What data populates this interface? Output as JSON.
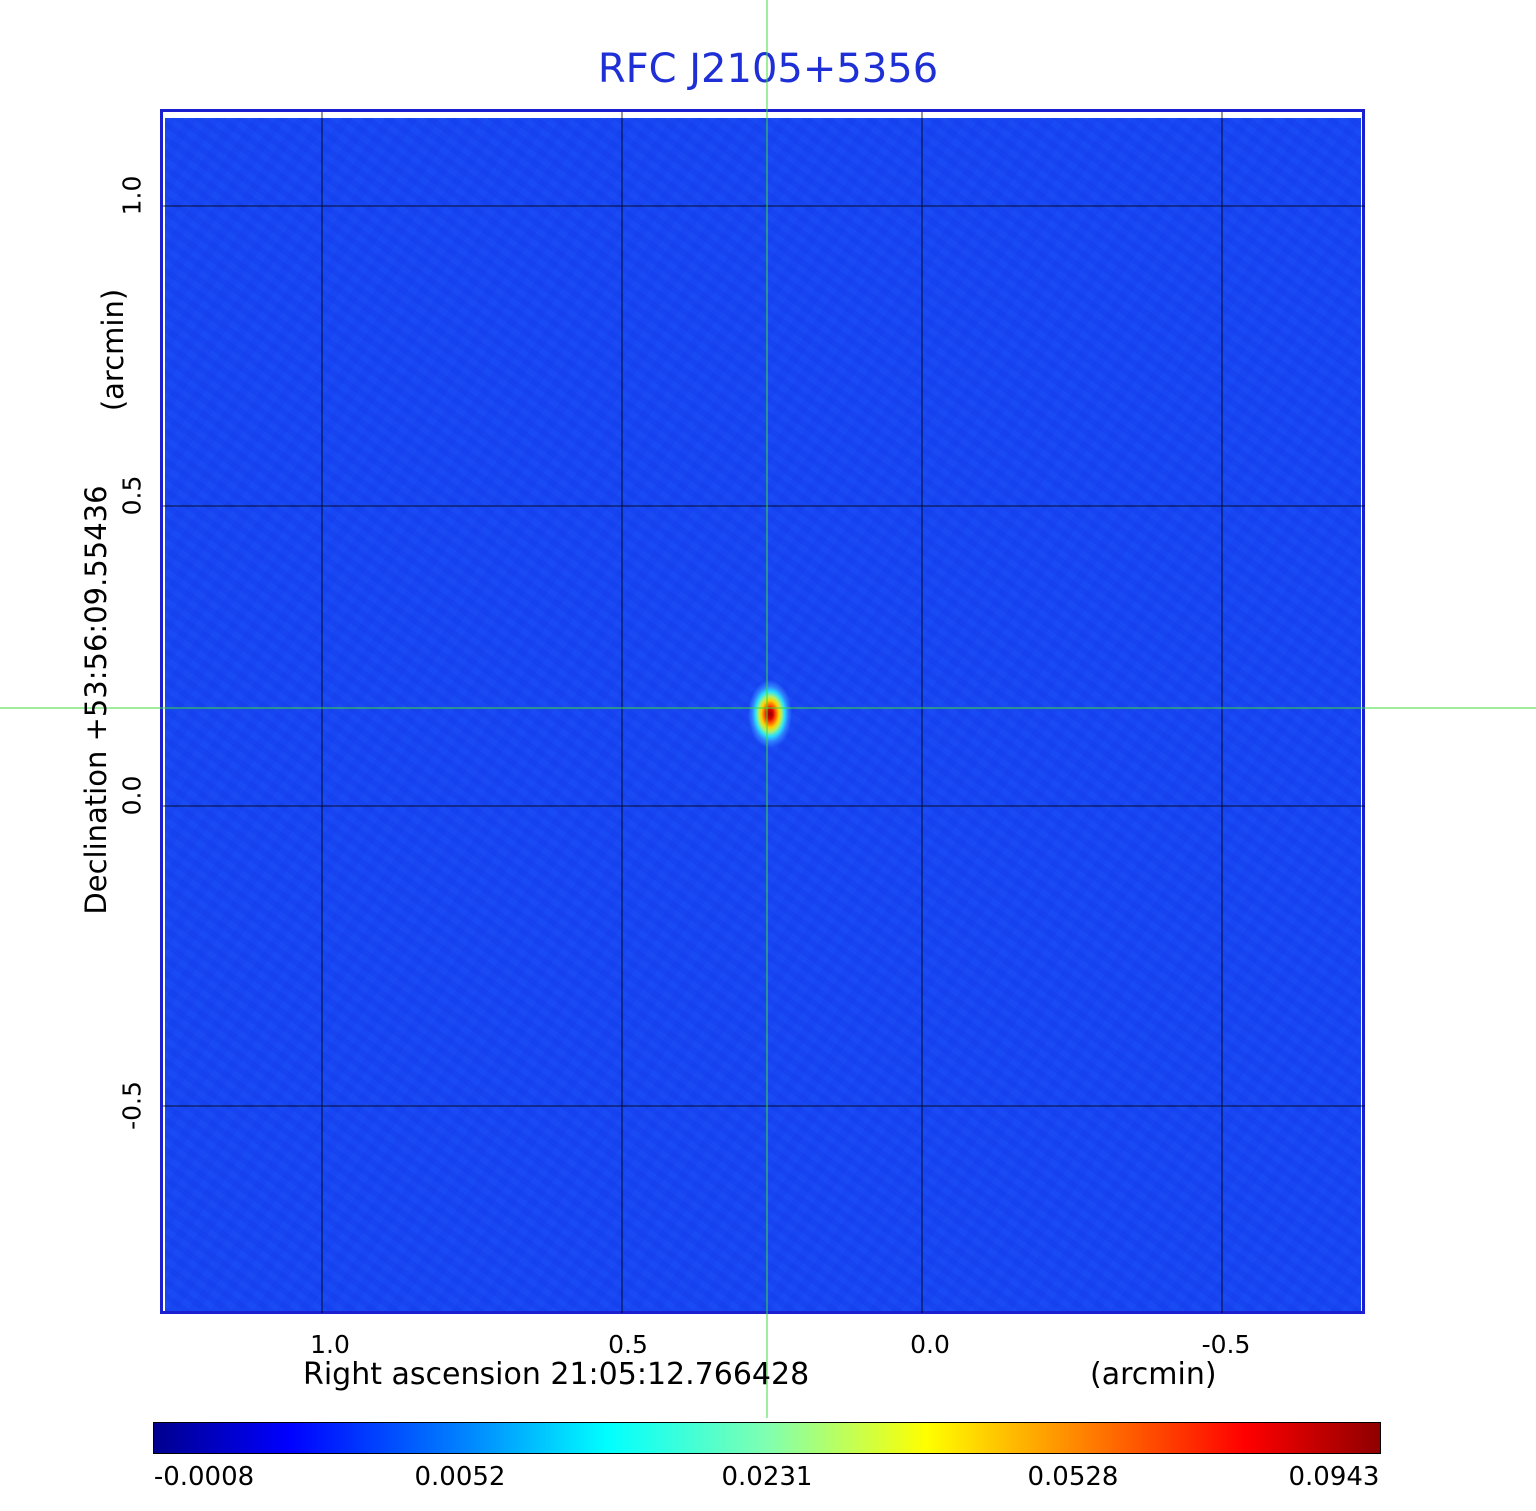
{
  "title": "RFC J2105+5356",
  "colors": {
    "title": "#1f2fd6",
    "frame": "#1a1fcf",
    "background_field": "#1747f2",
    "crosshair": "#3cdc3c",
    "grid": "#000000"
  },
  "xaxis": {
    "label": "Right ascension  21:05:12.766428",
    "units": "(arcmin)",
    "ticks": [
      "1.0",
      "0.5",
      "0.0",
      "-0.5"
    ]
  },
  "yaxis": {
    "label": "Declination  +53:56:09.55436",
    "units": "(arcmin)",
    "ticks": [
      "1.0",
      "0.5",
      "0.0",
      "-0.5"
    ]
  },
  "colorbar": {
    "colormap": "jet",
    "ticks": [
      "-0.0008",
      "0.0052",
      "0.0231",
      "0.0528",
      "0.0943"
    ]
  }
}
